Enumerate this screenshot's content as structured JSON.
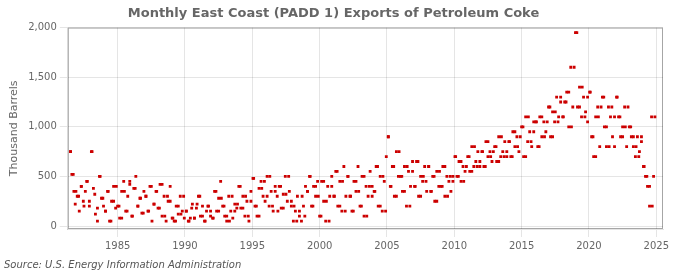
{
  "chart_data": {
    "type": "scatter",
    "title": "Monthly East Coast (PADD 1) Exports of Petroleum Coke",
    "ylabel": "Thousand Barrels",
    "annotation": "Source: U.S. Energy Information Administration",
    "color": "#cc0000",
    "marker": "square",
    "grid": true,
    "xlim": [
      1981.3,
      2025.5
    ],
    "ylim": [
      -30,
      2000
    ],
    "xticks": [
      1985,
      1990,
      1995,
      2000,
      2005,
      2010,
      2015,
      2020,
      2025
    ],
    "yticks": [
      0,
      500,
      {
        "value": 1000,
        "label": "1,000"
      },
      {
        "value": 1500,
        "label": "1,500"
      },
      {
        "value": 2000,
        "label": "2,000"
      }
    ],
    "x": [
      1981.5,
      1981.7,
      1981.9,
      1982.1,
      1982.3,
      1982.5,
      1982.7,
      1982.9,
      1983.1,
      1983.3,
      1983.5,
      1983.7,
      1983.9,
      1984.1,
      1984.3,
      1984.5,
      1984.7,
      1984.9,
      1985.1,
      1985.3,
      1985.5,
      1985.7,
      1985.9,
      1986.1,
      1986.3,
      1986.5,
      1986.7,
      1986.9,
      1987.1,
      1987.3,
      1987.5,
      1987.7,
      1987.9,
      1988.1,
      1988.3,
      1988.5,
      1988.7,
      1988.9,
      1989.1,
      1989.3,
      1989.5,
      1989.7,
      1989.9,
      1990.1,
      1990.3,
      1990.5,
      1990.7,
      1990.9,
      1991.1,
      1991.3,
      1991.5,
      1991.7,
      1991.9,
      1992.1,
      1992.3,
      1992.5,
      1992.7,
      1992.9,
      1993.1,
      1993.3,
      1993.5,
      1993.7,
      1993.9,
      1994.1,
      1994.3,
      1994.5,
      1994.7,
      1994.9,
      1995.1,
      1995.3,
      1995.5,
      1995.7,
      1995.9,
      1996.1,
      1996.3,
      1996.5,
      1996.7,
      1996.9,
      1997.1,
      1997.3,
      1997.5,
      1997.7,
      1997.9,
      1998.1,
      1998.3,
      1998.5,
      1998.7,
      1998.9,
      1999.1,
      1999.3,
      1999.5,
      1999.7,
      1999.9,
      2000.1,
      2000.3,
      2000.5,
      2000.7,
      2000.9,
      2001.1,
      2001.3,
      2001.5,
      2001.7,
      2001.9,
      2002.1,
      2002.3,
      2002.5,
      2002.7,
      2002.9,
      2003.1,
      2003.3,
      2003.5,
      2003.7,
      2003.9,
      2004.1,
      2004.3,
      2004.5,
      2004.7,
      2004.9,
      2005.1,
      2005.3,
      2005.5,
      2005.7,
      2005.9,
      2006.1,
      2006.3,
      2006.5,
      2006.7,
      2006.9,
      2007.1,
      2007.3,
      2007.5,
      2007.7,
      2007.9,
      2008.1,
      2008.3,
      2008.5,
      2008.7,
      2008.9,
      2009.1,
      2009.3,
      2009.5,
      2009.7,
      2009.9,
      2010.1,
      2010.3,
      2010.5,
      2010.7,
      2010.9,
      2011.1,
      2011.3,
      2011.5,
      2011.7,
      2011.9,
      2012.1,
      2012.3,
      2012.5,
      2012.7,
      2012.9,
      2013.1,
      2013.3,
      2013.5,
      2013.7,
      2013.9,
      2014.1,
      2014.3,
      2014.5,
      2014.7,
      2014.9,
      2015.1,
      2015.3,
      2015.5,
      2015.7,
      2015.9,
      2016.1,
      2016.3,
      2016.5,
      2016.7,
      2016.9,
      2017.1,
      2017.3,
      2017.5,
      2017.7,
      2017.9,
      2018.1,
      2018.3,
      2018.5,
      2018.7,
      2018.9,
      2019.1,
      2019.3,
      2019.5,
      2019.7,
      2019.9,
      2020.1,
      2020.3,
      2020.5,
      2020.7,
      2020.9,
      2021.1,
      2021.3,
      2021.5,
      2021.7,
      2021.9,
      2022.1,
      2022.3,
      2022.5,
      2022.7,
      2022.9,
      2023.1,
      2023.3,
      2023.5,
      2023.7,
      2023.9,
      2024.1,
      2024.3,
      2024.5,
      2024.7,
      2024.9,
      1981.5,
      1981.6,
      1981.75,
      1981.85,
      1982.0,
      1982.15,
      1982.3,
      1982.45,
      1982.6,
      1982.75,
      1982.9,
      1983.05,
      1983.2,
      1983.35,
      1983.5,
      1983.65,
      1983.8,
      1983.95,
      1984.1,
      1984.25,
      1984.4,
      1984.55,
      1984.7,
      1984.85,
      1985.0,
      1985.15,
      1985.3,
      1985.45,
      1985.6,
      1985.75,
      1985.9,
      1986.05,
      1986.2,
      1986.35,
      1986.5,
      1986.65,
      1986.8,
      1986.95,
      1987.1,
      1987.25,
      1987.4,
      1987.55,
      1987.7,
      1987.85,
      1988.0,
      1988.15,
      1988.3,
      1988.45,
      1988.6,
      1988.75,
      1988.9,
      1989.05,
      1989.2,
      1989.35,
      1989.5,
      1989.65,
      1989.8,
      1989.95,
      1990.1,
      1990.25,
      1990.4,
      1990.55,
      1990.7,
      1990.85,
      1991.0,
      1991.15,
      1991.3,
      1991.45,
      1991.6,
      1991.75,
      1991.9,
      1992.05,
      1992.2,
      1992.35,
      1992.5,
      1992.65,
      1992.8,
      1992.95,
      1993.1,
      1993.25,
      1993.4,
      1993.55,
      1993.7,
      1993.85,
      1994.0,
      1994.15,
      1994.3,
      1994.45,
      1994.6,
      1994.75,
      1994.9,
      1995.05,
      1995.2,
      1995.35,
      1995.5,
      1995.65,
      1995.8,
      1995.95,
      1996.1,
      1996.25,
      1996.4,
      1996.55,
      1996.7,
      1996.85,
      1997.0,
      1997.15,
      1997.3,
      1997.45,
      1997.6,
      1997.75,
      1997.9,
      1998.05,
      1998.2,
      1998.35,
      1998.5,
      1998.65,
      1998.8,
      1998.95,
      1999.1,
      1999.25,
      1999.4,
      1999.55,
      1999.7,
      1999.85,
      2000.0,
      2000.15,
      2000.3,
      2000.45,
      2000.6,
      2000.75,
      2000.9,
      2001.05,
      2001.2,
      2001.35,
      2001.5,
      2001.65,
      2001.8,
      2001.95,
      2002.1,
      2002.25,
      2002.4,
      2002.55,
      2002.7,
      2002.85,
      2003.0,
      2003.15,
      2003.3,
      2003.45,
      2003.6,
      2003.75,
      2003.9,
      2004.05,
      2004.2,
      2004.35,
      2004.5,
      2004.65,
      2004.8,
      2004.95,
      2005.1,
      2005.25,
      2005.4,
      2005.55,
      2005.7,
      2005.85,
      2006.0,
      2006.15,
      2006.3,
      2006.45,
      2006.6,
      2006.75,
      2006.9,
      2007.05,
      2007.2,
      2007.35,
      2007.5,
      2007.65,
      2007.8,
      2007.95,
      2008.1,
      2008.25,
      2008.4,
      2008.55,
      2008.7,
      2008.85,
      2009.0,
      2009.15,
      2009.3,
      2009.45,
      2009.6,
      2009.75,
      2009.9,
      2010.05,
      2010.2,
      2010.35,
      2010.5,
      2010.65,
      2010.8,
      2011.0,
      2011.15,
      2011.3,
      2011.45,
      2011.6,
      2011.75,
      2011.9,
      2012.05,
      2012.2,
      2012.35,
      2012.5,
      2012.65,
      2012.8,
      2013.0,
      2013.15,
      2013.3,
      2013.45,
      2013.6,
      2013.75,
      2013.9,
      2014.05,
      2014.2,
      2014.35,
      2014.5,
      2014.65,
      2014.8,
      2015.0,
      2015.15,
      2015.3,
      2015.45,
      2015.6,
      2015.75,
      2015.9,
      2016.05,
      2016.2,
      2016.35,
      2016.5,
      2016.65,
      2016.8,
      2017.0,
      2017.15,
      2017.3,
      2017.45,
      2017.6,
      2017.75,
      2017.9,
      2018.05,
      2018.2,
      2018.35,
      2018.5,
      2018.65,
      2018.8,
      2019.0,
      2019.15,
      2019.3,
      2019.45,
      2019.6,
      2019.75,
      2019.9,
      2020.05,
      2020.2,
      2020.35,
      2020.5,
      2020.65,
      2020.8,
      2021.0,
      2021.15,
      2021.3,
      2021.45,
      2021.6,
      2021.75,
      2021.9,
      2022.05,
      2022.2,
      2022.35,
      2022.5,
      2022.65,
      2022.8,
      2023.0,
      2023.15,
      2023.3,
      2023.45,
      2023.6,
      2023.75,
      2023.9,
      2024.05,
      2024.2,
      2024.35,
      2024.5,
      2024.65,
      2024.8
    ],
    "values": [
      750,
      520,
      350,
      300,
      400,
      200,
      450,
      250,
      750,
      320,
      180,
      500,
      280,
      150,
      350,
      50,
      250,
      400,
      200,
      80,
      350,
      150,
      450,
      100,
      380,
      200,
      280,
      130,
      300,
      150,
      400,
      220,
      350,
      180,
      420,
      100,
      300,
      250,
      80,
      50,
      200,
      120,
      300,
      150,
      50,
      180,
      80,
      220,
      300,
      100,
      50,
      200,
      150,
      80,
      350,
      150,
      280,
      200,
      100,
      50,
      300,
      150,
      220,
      400,
      180,
      300,
      100,
      250,
      480,
      200,
      100,
      380,
      450,
      300,
      500,
      200,
      350,
      150,
      400,
      180,
      320,
      500,
      250,
      200,
      50,
      150,
      300,
      100,
      350,
      500,
      200,
      400,
      300,
      100,
      450,
      250,
      50,
      400,
      300,
      550,
      200,
      450,
      150,
      500,
      300,
      150,
      450,
      350,
      200,
      500,
      100,
      400,
      300,
      350,
      600,
      200,
      500,
      150,
      900,
      400,
      600,
      300,
      750,
      500,
      350,
      600,
      200,
      550,
      400,
      650,
      300,
      500,
      450,
      600,
      350,
      500,
      250,
      550,
      400,
      600,
      300,
      500,
      450,
      700,
      500,
      650,
      450,
      600,
      700,
      550,
      800,
      600,
      650,
      750,
      600,
      850,
      700,
      750,
      800,
      650,
      900,
      700,
      750,
      850,
      700,
      950,
      800,
      900,
      1000,
      700,
      1100,
      850,
      950,
      1050,
      800,
      1100,
      900,
      1050,
      1200,
      900,
      1150,
      1050,
      1300,
      1100,
      1250,
      1350,
      1000,
      1600,
      1950,
      1200,
      1400,
      1100,
      1300,
      1350,
      900,
      700,
      1100,
      1200,
      1300,
      1000,
      800,
      1200,
      1100,
      1300,
      1100,
      900,
      1000,
      1200,
      1000,
      900,
      800,
      700,
      900,
      600,
      500,
      400,
      200,
      1100,
      750,
      520,
      350,
      220,
      300,
      150,
      400,
      250,
      350,
      450,
      200,
      750,
      380,
      120,
      50,
      500,
      280,
      200,
      150,
      350,
      50,
      250,
      400,
      180,
      200,
      80,
      350,
      450,
      150,
      300,
      420,
      100,
      380,
      500,
      200,
      280,
      130,
      350,
      300,
      150,
      400,
      50,
      220,
      350,
      180,
      420,
      100,
      300,
      50,
      250,
      400,
      80,
      50,
      200,
      120,
      300,
      150,
      80,
      150,
      50,
      80,
      220,
      80,
      180,
      300,
      100,
      200,
      50,
      150,
      200,
      100,
      80,
      350,
      150,
      280,
      450,
      200,
      100,
      50,
      300,
      150,
      80,
      220,
      180,
      400,
      180,
      300,
      100,
      250,
      50,
      350,
      480,
      200,
      100,
      380,
      450,
      300,
      250,
      500,
      200,
      350,
      150,
      400,
      300,
      400,
      180,
      320,
      500,
      250,
      350,
      200,
      50,
      150,
      300,
      100,
      50,
      200,
      400,
      350,
      500,
      200,
      400,
      300,
      450,
      100,
      450,
      250,
      50,
      400,
      300,
      500,
      300,
      550,
      200,
      450,
      150,
      600,
      300,
      500,
      300,
      150,
      450,
      350,
      600,
      200,
      500,
      100,
      400,
      300,
      550,
      400,
      350,
      600,
      200,
      500,
      150,
      450,
      700,
      900,
      400,
      600,
      300,
      750,
      500,
      500,
      350,
      600,
      200,
      550,
      400,
      650,
      400,
      650,
      300,
      500,
      450,
      600,
      350,
      600,
      350,
      500,
      250,
      550,
      400,
      400,
      600,
      300,
      500,
      450,
      350,
      500,
      700,
      500,
      650,
      450,
      600,
      550,
      700,
      550,
      800,
      600,
      650,
      750,
      600,
      750,
      600,
      850,
      700,
      750,
      650,
      800,
      650,
      900,
      700,
      750,
      850,
      700,
      850,
      700,
      950,
      800,
      900,
      750,
      1000,
      700,
      1100,
      850,
      950,
      800,
      1050,
      1050,
      800,
      1100,
      900,
      1050,
      950,
      1200,
      900,
      1150,
      1050,
      1300,
      1100,
      1250,
      1100,
      1250,
      1350,
      1000,
      1600,
      1200,
      1950,
      1200,
      1400,
      1100,
      1300,
      1150,
      1050,
      1350,
      900,
      700,
      1100,
      1200,
      800,
      1300,
      1000,
      800,
      1200,
      1100,
      900,
      800,
      1300,
      1100,
      900,
      1000,
      1200,
      800,
      1000,
      900,
      800,
      700,
      900,
      750,
      850,
      600,
      500,
      400,
      200,
      1100,
      500
    ]
  }
}
